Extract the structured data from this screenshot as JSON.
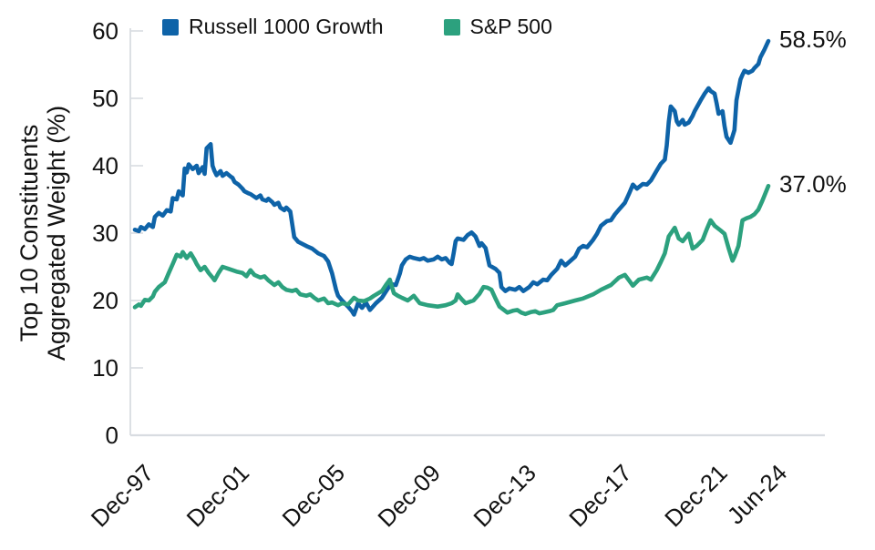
{
  "chart_data": {
    "type": "line",
    "title": "",
    "ylabel_lines": [
      "Top 10 Constituents",
      "Aggregated Weight (%)"
    ],
    "xlabel": "",
    "x_unit": "months since Dec-1997",
    "xlim": [
      0,
      318
    ],
    "ylim": [
      0,
      60
    ],
    "grid": false,
    "legend_position": "top",
    "axis_color": "#D8DCE1",
    "text_color": "#121212",
    "y_ticks": [
      0,
      10,
      20,
      30,
      40,
      50,
      60
    ],
    "x_ticks": [
      {
        "label": "Dec-97",
        "month": 0
      },
      {
        "label": "Dec-01",
        "month": 48
      },
      {
        "label": "Dec-05",
        "month": 96
      },
      {
        "label": "Dec-09",
        "month": 144
      },
      {
        "label": "Dec-13",
        "month": 192
      },
      {
        "label": "Dec-17",
        "month": 240
      },
      {
        "label": "Dec-21",
        "month": 288
      },
      {
        "label": "Jun-24",
        "month": 318
      }
    ],
    "series": [
      {
        "name": "Russell 1000 Growth",
        "color": "#0E63A8",
        "end_label": "58.5%",
        "end_value": 58.5,
        "points": [
          [
            0,
            30.5
          ],
          [
            2,
            30.3
          ],
          [
            3,
            30.9
          ],
          [
            5,
            30.6
          ],
          [
            7,
            31.3
          ],
          [
            9,
            30.9
          ],
          [
            10,
            32.4
          ],
          [
            12,
            33.0
          ],
          [
            14,
            32.6
          ],
          [
            16,
            33.4
          ],
          [
            18,
            33.2
          ],
          [
            19,
            35.2
          ],
          [
            21,
            35.0
          ],
          [
            22,
            36.2
          ],
          [
            24,
            35.6
          ],
          [
            25,
            39.6
          ],
          [
            26,
            39.0
          ],
          [
            27,
            40.2
          ],
          [
            29,
            39.5
          ],
          [
            31,
            40.0
          ],
          [
            32,
            38.9
          ],
          [
            34,
            39.8
          ],
          [
            35,
            38.8
          ],
          [
            36,
            42.6
          ],
          [
            38,
            43.2
          ],
          [
            39,
            40.0
          ],
          [
            40,
            39.2
          ],
          [
            41,
            38.6
          ],
          [
            43,
            39.2
          ],
          [
            44,
            38.5
          ],
          [
            46,
            38.9
          ],
          [
            48,
            38.4
          ],
          [
            49,
            38.2
          ],
          [
            50,
            37.6
          ],
          [
            52,
            37.2
          ],
          [
            54,
            36.6
          ],
          [
            55,
            36.2
          ],
          [
            57,
            35.9
          ],
          [
            58,
            35.8
          ],
          [
            60,
            35.4
          ],
          [
            61,
            35.2
          ],
          [
            63,
            35.6
          ],
          [
            64,
            35.0
          ],
          [
            66,
            34.8
          ],
          [
            67,
            35.1
          ],
          [
            69,
            34.6
          ],
          [
            70,
            34.2
          ],
          [
            72,
            34.5
          ],
          [
            73,
            33.8
          ],
          [
            75,
            33.4
          ],
          [
            76,
            33.8
          ],
          [
            78,
            33.2
          ],
          [
            80,
            29.4
          ],
          [
            82,
            28.7
          ],
          [
            84,
            28.4
          ],
          [
            86,
            28.1
          ],
          [
            89,
            27.7
          ],
          [
            92,
            27.0
          ],
          [
            95,
            26.6
          ],
          [
            97,
            25.8
          ],
          [
            99,
            24.0
          ],
          [
            101,
            21.6
          ],
          [
            102,
            20.7
          ],
          [
            104,
            20.0
          ],
          [
            107,
            19.1
          ],
          [
            109,
            18.4
          ],
          [
            110,
            17.9
          ],
          [
            112,
            19.6
          ],
          [
            114,
            18.9
          ],
          [
            116,
            19.7
          ],
          [
            118,
            18.6
          ],
          [
            121,
            19.6
          ],
          [
            124,
            20.4
          ],
          [
            127,
            21.8
          ],
          [
            129,
            22.4
          ],
          [
            131,
            22.3
          ],
          [
            133,
            24.0
          ],
          [
            134,
            25.2
          ],
          [
            136,
            26.1
          ],
          [
            138,
            26.5
          ],
          [
            140,
            26.3
          ],
          [
            143,
            26.1
          ],
          [
            145,
            26.3
          ],
          [
            147,
            25.9
          ],
          [
            150,
            26.1
          ],
          [
            152,
            26.5
          ],
          [
            154,
            26.1
          ],
          [
            156,
            26.3
          ],
          [
            158,
            25.6
          ],
          [
            159,
            25.4
          ],
          [
            160,
            27.0
          ],
          [
            161,
            28.8
          ],
          [
            162,
            29.2
          ],
          [
            165,
            29.0
          ],
          [
            167,
            29.7
          ],
          [
            169,
            30.1
          ],
          [
            171,
            29.5
          ],
          [
            173,
            28.1
          ],
          [
            174,
            28.5
          ],
          [
            176,
            27.8
          ],
          [
            178,
            25.2
          ],
          [
            181,
            24.7
          ],
          [
            183,
            24.1
          ],
          [
            184,
            22.0
          ],
          [
            186,
            21.4
          ],
          [
            188,
            21.8
          ],
          [
            191,
            21.6
          ],
          [
            193,
            22.0
          ],
          [
            195,
            21.4
          ],
          [
            198,
            22.0
          ],
          [
            200,
            22.7
          ],
          [
            202,
            22.4
          ],
          [
            205,
            23.1
          ],
          [
            207,
            23.0
          ],
          [
            209,
            23.8
          ],
          [
            212,
            24.7
          ],
          [
            214,
            25.9
          ],
          [
            216,
            25.2
          ],
          [
            218,
            25.7
          ],
          [
            221,
            26.5
          ],
          [
            223,
            27.7
          ],
          [
            225,
            28.1
          ],
          [
            227,
            27.9
          ],
          [
            230,
            29.0
          ],
          [
            232,
            29.9
          ],
          [
            234,
            31.1
          ],
          [
            237,
            31.8
          ],
          [
            239,
            31.9
          ],
          [
            241,
            32.8
          ],
          [
            243,
            33.5
          ],
          [
            246,
            34.5
          ],
          [
            248,
            35.8
          ],
          [
            250,
            37.2
          ],
          [
            252,
            36.6
          ],
          [
            255,
            37.3
          ],
          [
            257,
            37.2
          ],
          [
            259,
            37.8
          ],
          [
            262,
            39.3
          ],
          [
            264,
            40.3
          ],
          [
            266,
            40.9
          ],
          [
            267,
            43.0
          ],
          [
            268,
            46.5
          ],
          [
            269,
            48.8
          ],
          [
            271,
            48.1
          ],
          [
            272,
            46.6
          ],
          [
            273,
            46.1
          ],
          [
            275,
            46.8
          ],
          [
            276,
            46.1
          ],
          [
            278,
            46.4
          ],
          [
            280,
            47.4
          ],
          [
            281,
            48.1
          ],
          [
            284,
            49.7
          ],
          [
            286,
            50.7
          ],
          [
            288,
            51.5
          ],
          [
            289,
            51.1
          ],
          [
            291,
            50.7
          ],
          [
            292,
            49.3
          ],
          [
            293,
            47.7
          ],
          [
            295,
            48.1
          ],
          [
            296,
            45.9
          ],
          [
            297,
            44.3
          ],
          [
            299,
            43.4
          ],
          [
            301,
            45.3
          ],
          [
            302,
            49.7
          ],
          [
            304,
            52.8
          ],
          [
            305,
            53.5
          ],
          [
            306,
            54.1
          ],
          [
            308,
            53.8
          ],
          [
            310,
            54.1
          ],
          [
            311,
            54.5
          ],
          [
            313,
            55.1
          ],
          [
            314,
            56.1
          ],
          [
            316,
            57.2
          ],
          [
            318,
            58.5
          ]
        ]
      },
      {
        "name": "S&P 500",
        "color": "#2CA17E",
        "end_label": "37.0%",
        "end_value": 37.0,
        "points": [
          [
            0,
            19.0
          ],
          [
            2,
            19.4
          ],
          [
            3,
            19.2
          ],
          [
            5,
            20.1
          ],
          [
            7,
            20.0
          ],
          [
            9,
            20.6
          ],
          [
            10,
            21.3
          ],
          [
            12,
            22.0
          ],
          [
            15,
            22.7
          ],
          [
            17,
            24.1
          ],
          [
            19,
            25.4
          ],
          [
            21,
            26.8
          ],
          [
            23,
            26.5
          ],
          [
            24,
            27.2
          ],
          [
            26,
            26.3
          ],
          [
            28,
            27.0
          ],
          [
            30,
            26.0
          ],
          [
            31,
            25.4
          ],
          [
            33,
            24.5
          ],
          [
            35,
            25.0
          ],
          [
            37,
            24.1
          ],
          [
            39,
            23.4
          ],
          [
            40,
            23.0
          ],
          [
            42,
            24.1
          ],
          [
            44,
            25.0
          ],
          [
            47,
            24.7
          ],
          [
            49,
            24.5
          ],
          [
            51,
            24.3
          ],
          [
            54,
            24.1
          ],
          [
            56,
            23.6
          ],
          [
            58,
            24.5
          ],
          [
            60,
            23.8
          ],
          [
            63,
            23.4
          ],
          [
            65,
            23.6
          ],
          [
            67,
            23.0
          ],
          [
            70,
            22.3
          ],
          [
            72,
            22.7
          ],
          [
            74,
            22.0
          ],
          [
            76,
            21.6
          ],
          [
            79,
            21.4
          ],
          [
            81,
            21.6
          ],
          [
            83,
            20.9
          ],
          [
            86,
            20.7
          ],
          [
            88,
            20.9
          ],
          [
            90,
            20.4
          ],
          [
            92,
            20.0
          ],
          [
            95,
            20.3
          ],
          [
            97,
            19.6
          ],
          [
            99,
            19.7
          ],
          [
            102,
            19.3
          ],
          [
            104,
            19.6
          ],
          [
            107,
            19.4
          ],
          [
            110,
            20.4
          ],
          [
            112,
            20.0
          ],
          [
            115,
            19.9
          ],
          [
            118,
            20.3
          ],
          [
            120,
            20.7
          ],
          [
            124,
            21.4
          ],
          [
            126,
            22.3
          ],
          [
            128,
            23.1
          ],
          [
            130,
            21.1
          ],
          [
            132,
            20.7
          ],
          [
            134,
            20.4
          ],
          [
            137,
            20.0
          ],
          [
            140,
            20.7
          ],
          [
            143,
            19.6
          ],
          [
            147,
            19.3
          ],
          [
            152,
            19.1
          ],
          [
            156,
            19.3
          ],
          [
            159,
            19.6
          ],
          [
            161,
            20.0
          ],
          [
            162,
            20.9
          ],
          [
            164,
            20.2
          ],
          [
            166,
            19.6
          ],
          [
            170,
            20.0
          ],
          [
            173,
            21.0
          ],
          [
            175,
            22.0
          ],
          [
            177,
            21.9
          ],
          [
            179,
            21.6
          ],
          [
            181,
            20.3
          ],
          [
            183,
            19.1
          ],
          [
            187,
            18.2
          ],
          [
            190,
            18.5
          ],
          [
            192,
            18.6
          ],
          [
            194,
            18.2
          ],
          [
            196,
            18.0
          ],
          [
            199,
            18.3
          ],
          [
            201,
            18.4
          ],
          [
            203,
            18.1
          ],
          [
            205,
            18.2
          ],
          [
            208,
            18.4
          ],
          [
            210,
            18.6
          ],
          [
            212,
            19.3
          ],
          [
            216,
            19.6
          ],
          [
            221,
            20.0
          ],
          [
            225,
            20.3
          ],
          [
            230,
            20.9
          ],
          [
            234,
            21.6
          ],
          [
            239,
            22.3
          ],
          [
            243,
            23.4
          ],
          [
            246,
            23.8
          ],
          [
            248,
            23.0
          ],
          [
            250,
            22.2
          ],
          [
            253,
            23.1
          ],
          [
            257,
            23.4
          ],
          [
            259,
            23.1
          ],
          [
            262,
            24.5
          ],
          [
            264,
            25.7
          ],
          [
            266,
            27.0
          ],
          [
            268,
            29.5
          ],
          [
            271,
            30.8
          ],
          [
            273,
            29.2
          ],
          [
            275,
            28.8
          ],
          [
            278,
            29.9
          ],
          [
            280,
            27.7
          ],
          [
            282,
            28.1
          ],
          [
            285,
            29.0
          ],
          [
            287,
            30.5
          ],
          [
            289,
            31.9
          ],
          [
            291,
            31.1
          ],
          [
            294,
            30.4
          ],
          [
            296,
            29.9
          ],
          [
            298,
            27.8
          ],
          [
            300,
            25.9
          ],
          [
            301,
            26.5
          ],
          [
            303,
            28.1
          ],
          [
            305,
            31.9
          ],
          [
            307,
            32.2
          ],
          [
            309,
            32.4
          ],
          [
            311,
            32.8
          ],
          [
            313,
            33.5
          ],
          [
            315,
            34.8
          ],
          [
            318,
            37.0
          ]
        ]
      }
    ]
  }
}
